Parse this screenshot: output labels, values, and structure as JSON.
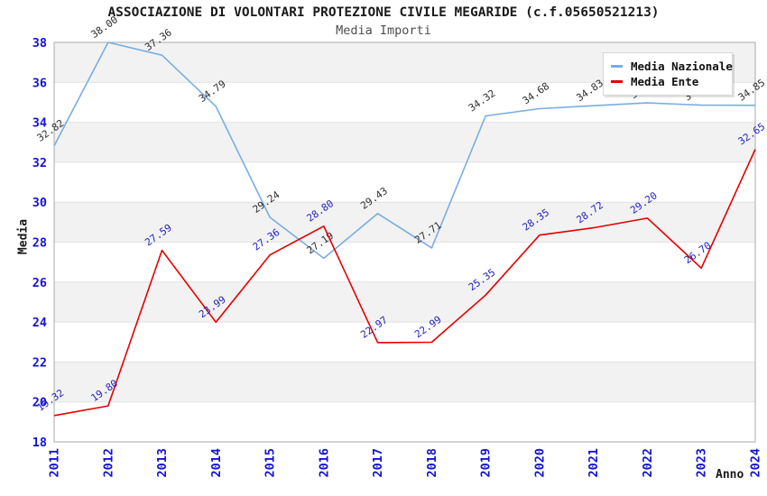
{
  "header": {
    "title": "ASSOCIAZIONE DI VOLONTARI PROTEZIONE CIVILE MEGARIDE (c.f.05650521213)",
    "subtitle": "Media Importi"
  },
  "legend": {
    "items": [
      {
        "label": "Media Nazionale",
        "color": "#78ade3"
      },
      {
        "label": "Media Ente",
        "color": "#e60000"
      }
    ]
  },
  "chart_data": {
    "type": "line",
    "title": "ASSOCIAZIONE DI VOLONTARI PROTEZIONE CIVILE MEGARIDE (c.f.05650521213)",
    "subtitle": "Media Importi",
    "xlabel": "Anno",
    "ylabel": "Media",
    "categories": [
      "2011",
      "2012",
      "2013",
      "2014",
      "2015",
      "2016",
      "2017",
      "2018",
      "2019",
      "2020",
      "2021",
      "2022",
      "2023",
      "2024"
    ],
    "series": [
      {
        "name": "Media Nazionale",
        "color": "#78ade3",
        "label_color": "#2e2e2e",
        "values": [
          32.82,
          38.0,
          37.36,
          34.79,
          29.24,
          27.19,
          29.43,
          27.71,
          34.32,
          34.68,
          34.83,
          34.97,
          34.86,
          34.85
        ]
      },
      {
        "name": "Media Ente",
        "color": "#e60000",
        "label_color": "#2222c0",
        "values": [
          19.32,
          19.8,
          27.59,
          23.99,
          27.36,
          28.8,
          22.97,
          22.99,
          25.35,
          28.35,
          28.72,
          29.2,
          26.7,
          32.65
        ]
      }
    ],
    "ylim": [
      18,
      38
    ],
    "yticks": [
      18,
      20,
      22,
      24,
      26,
      28,
      30,
      32,
      34,
      36,
      38
    ],
    "grid": "alternating horizontal bands",
    "legend_position": "top-right",
    "colors": {
      "tick_label": "#1414cc",
      "band_fill": "#f2f2f2",
      "grid_line": "#e2e2e2",
      "plot_border": "#aaaaaa"
    }
  }
}
